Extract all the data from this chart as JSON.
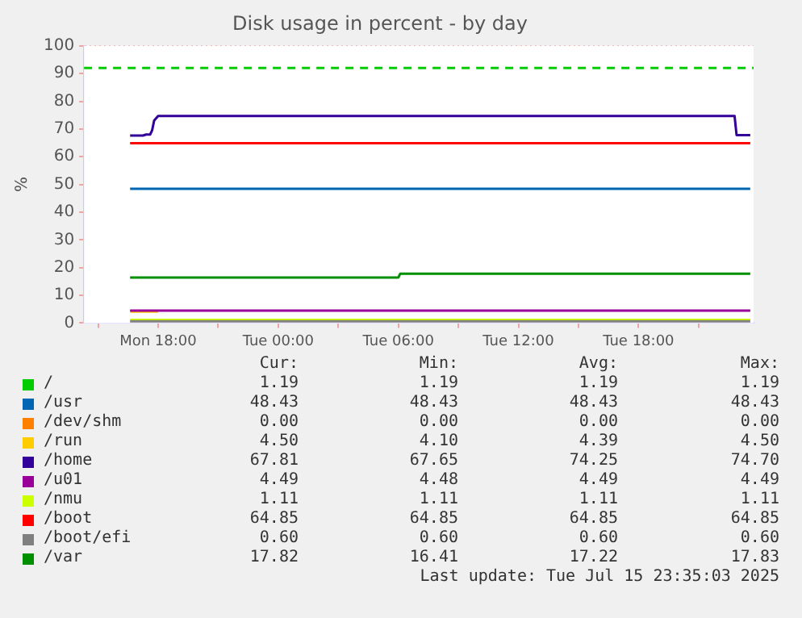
{
  "chart_data": {
    "type": "line",
    "title": "Disk usage in percent - by day",
    "ylabel": "%",
    "xlim": [
      "2025-07-14T14:18",
      "2025-07-15T23:45"
    ],
    "ylim": [
      0,
      100
    ],
    "xticks": [
      {
        "value": "2025-07-14T15:00",
        "label": null
      },
      {
        "value": "2025-07-14T18:00",
        "label": "Mon 18:00"
      },
      {
        "value": "2025-07-14T21:00",
        "label": null
      },
      {
        "value": "2025-07-15T00:00",
        "label": "Tue 00:00"
      },
      {
        "value": "2025-07-15T03:00",
        "label": null
      },
      {
        "value": "2025-07-15T06:00",
        "label": "Tue 06:00"
      },
      {
        "value": "2025-07-15T09:00",
        "label": null
      },
      {
        "value": "2025-07-15T12:00",
        "label": "Tue 12:00"
      },
      {
        "value": "2025-07-15T15:00",
        "label": null
      },
      {
        "value": "2025-07-15T18:00",
        "label": "Tue 18:00"
      },
      {
        "value": "2025-07-15T21:00",
        "label": null
      }
    ],
    "yticks": [
      0,
      10,
      20,
      30,
      40,
      50,
      60,
      70,
      80,
      90,
      100
    ],
    "grid": true,
    "legend": "bottom",
    "marker": "none",
    "line_style": "solid",
    "series": [
      {
        "name": "/",
        "color": "#00cc00"
      },
      {
        "name": "/usr",
        "color": "#0066b3",
        "x": [
          "2025-07-14T16:36",
          "2025-07-15T23:35"
        ],
        "values": [
          48.43,
          48.43
        ]
      },
      {
        "name": "/dev/shm",
        "color": "#ff8000"
      },
      {
        "name": "/run",
        "color": "#ffcc00",
        "x": [
          "2025-07-14T16:36",
          "2025-07-14T18:00"
        ],
        "values": [
          4.1,
          4.1
        ]
      },
      {
        "name": "/home",
        "color": "#330099",
        "x": [
          "2025-07-14T16:36",
          "2025-07-14T17:15",
          "2025-07-14T17:24",
          "2025-07-14T17:36",
          "2025-07-14T17:42",
          "2025-07-14T17:48",
          "2025-07-14T18:00",
          "2025-07-15T22:48",
          "2025-07-15T22:54",
          "2025-07-15T23:35"
        ],
        "values": [
          67.65,
          67.65,
          68.0,
          68.0,
          69.5,
          73,
          74.7,
          74.7,
          67.81,
          67.81
        ]
      },
      {
        "name": "/u01",
        "color": "#990099",
        "x": [
          "2025-07-14T16:36",
          "2025-07-15T23:35"
        ],
        "values": [
          4.49,
          4.49
        ]
      },
      {
        "name": "/nmu",
        "color": "#ccff00",
        "x": [
          "2025-07-14T16:36",
          "2025-07-15T23:35"
        ],
        "values": [
          1.11,
          1.11
        ]
      },
      {
        "name": "/boot",
        "color": "#ff0000",
        "x": [
          "2025-07-14T16:36",
          "2025-07-15T23:35"
        ],
        "values": [
          64.85,
          64.85
        ]
      },
      {
        "name": "/boot/efi",
        "color": "#808080",
        "x": [
          "2025-07-14T16:36",
          "2025-07-15T23:35"
        ],
        "values": [
          0.6,
          0.6
        ]
      },
      {
        "name": "/var",
        "color": "#008f00",
        "x": [
          "2025-07-14T16:36",
          "2025-07-15T06:00",
          "2025-07-15T06:06",
          "2025-07-15T23:35"
        ],
        "values": [
          16.41,
          16.41,
          17.83,
          17.82
        ]
      }
    ],
    "ref_lines": [
      {
        "axis": "y",
        "value": 92,
        "color": "#00cc00",
        "line_style": "dashed"
      }
    ],
    "annotations": [
      "Cur:",
      "Min:",
      "Avg:",
      "Max:",
      "1.19",
      "1.19",
      "1.19",
      "1.19",
      "48.43",
      "48.43",
      "48.43",
      "48.43",
      "0.00",
      "0.00",
      "0.00",
      "0.00",
      "4.50",
      "4.10",
      "4.39",
      "4.50",
      "67.81",
      "67.65",
      "74.25",
      "74.70",
      "4.49",
      "4.48",
      "4.49",
      "4.49",
      "1.11",
      "1.11",
      "1.11",
      "1.11",
      "64.85",
      "64.85",
      "64.85",
      "64.85",
      "0.60",
      "0.60",
      "0.60",
      "0.60",
      "17.82",
      "16.41",
      "17.22",
      "17.83",
      "Last update: Tue Jul 15 23:35:03 2025"
    ]
  }
}
